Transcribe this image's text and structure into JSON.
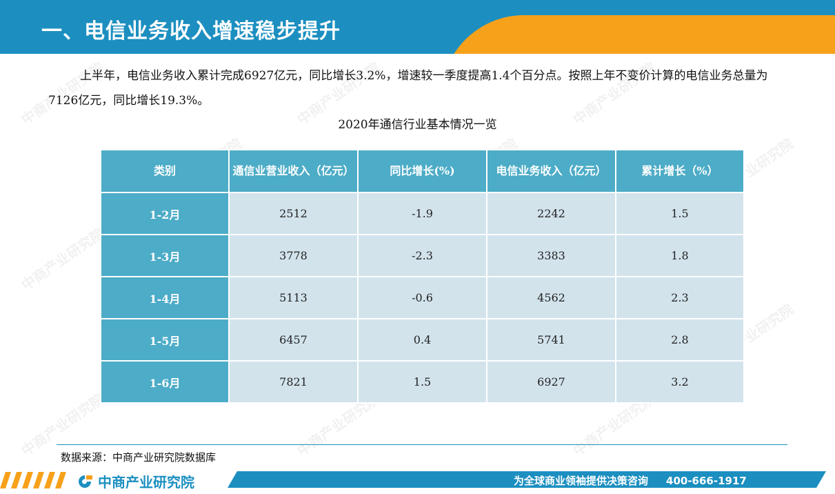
{
  "header": {
    "title": "一、电信业务收入增速稳步提升"
  },
  "paragraph": "上半年，电信业务收入累计完成6927亿元，同比增长3.2%，增速较一季度提高1.4个百分点。按照上年不变价计算的电信业务总量为7126亿元，同比增长19.3%。",
  "table": {
    "title": "2020年通信行业基本情况一览",
    "headers": [
      "类别",
      "通信业营业收入（亿元）",
      "同比增长(%)",
      "电信业务收入（亿元）",
      "累计增长（%）"
    ],
    "rows": [
      [
        "1-2月",
        "2512",
        "-1.9",
        "2242",
        "1.5"
      ],
      [
        "1-3月",
        "3778",
        "-2.3",
        "3383",
        "1.8"
      ],
      [
        "1-4月",
        "5113",
        "-0.6",
        "4562",
        "2.3"
      ],
      [
        "1-5月",
        "6457",
        "0.4",
        "5741",
        "2.8"
      ],
      [
        "1-6月",
        "7821",
        "1.5",
        "6927",
        "3.2"
      ]
    ]
  },
  "source": "数据来源：中商产业研究院数据库",
  "footer": {
    "logo_text": "中商产业研究院",
    "slogan": "为全球商业领袖提供决策咨询",
    "phone": "400-666-1917"
  },
  "watermark_text": "中商产业研究院",
  "colors": {
    "primary_blue": "#1c8fc0",
    "accent_orange": "#f7a11a",
    "table_header": "#4dacc7",
    "table_cell": "#d2e3ec"
  }
}
